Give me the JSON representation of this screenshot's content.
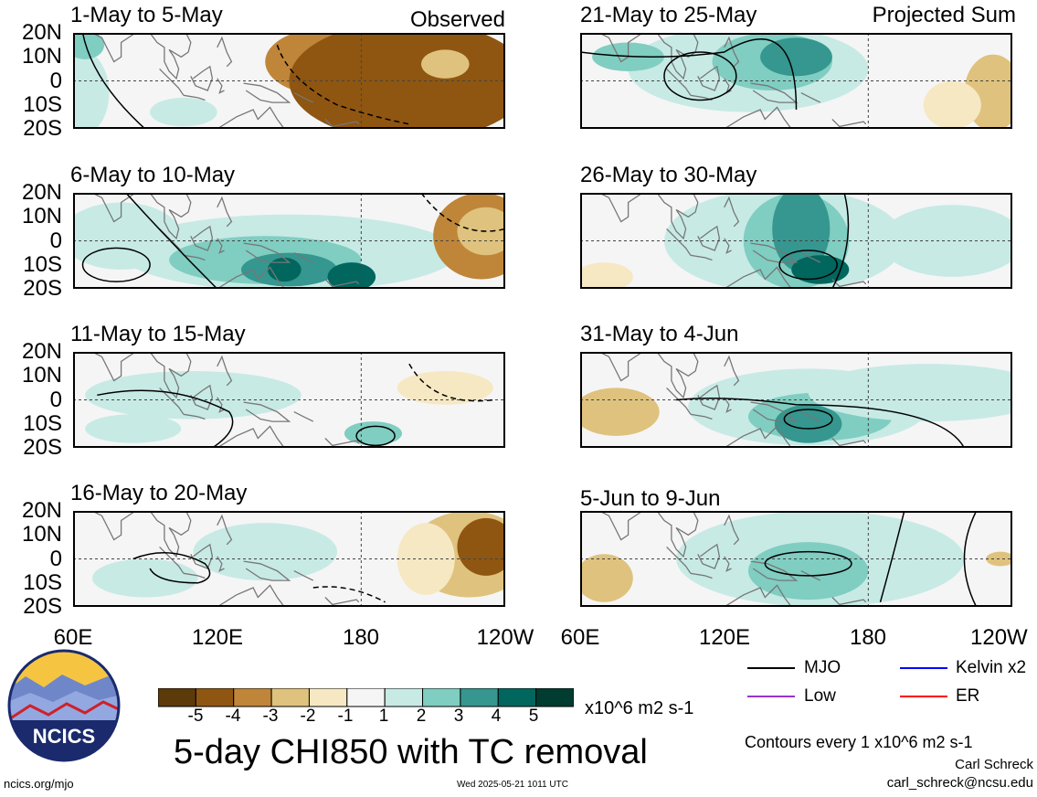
{
  "chart_data": {
    "type": "heatmap",
    "title": "5-day CHI850 with TC removal",
    "variable": "CHI850",
    "units": "x10^6 m2 s-1",
    "columns": [
      {
        "tag": "Observed",
        "panels": [
          "1-May to 5-May",
          "6-May to 10-May",
          "11-May to 15-May",
          "16-May to 20-May"
        ]
      },
      {
        "tag": "Projected Sum",
        "panels": [
          "21-May to 25-May",
          "26-May to 30-May",
          "31-May to 4-Jun",
          "5-Jun to 9-Jun"
        ]
      }
    ],
    "y_ticks": [
      "20N",
      "10N",
      "0",
      "10S",
      "20S"
    ],
    "y_range_deg": [
      -20,
      20
    ],
    "x_ticks": [
      "60E",
      "120E",
      "180",
      "120W"
    ],
    "x_range_deg": [
      60,
      240
    ],
    "colorbar": {
      "labels": [
        "-5",
        "-4",
        "-3",
        "-2",
        "-1",
        "1",
        "2",
        "3",
        "4",
        "5"
      ],
      "colors": [
        "#5c3a0a",
        "#8f5611",
        "#bf8539",
        "#dfc27d",
        "#f6e8c3",
        "#f5f5f5",
        "#c7eae5",
        "#80cdc1",
        "#35978f",
        "#01665e",
        "#003c30"
      ]
    },
    "legend": [
      {
        "label": "MJO",
        "color": "#000000"
      },
      {
        "label": "Kelvin x2",
        "color": "#0000ff"
      },
      {
        "label": "Low",
        "color": "#9933cc"
      },
      {
        "label": "ER",
        "color": "#ff0000"
      }
    ],
    "contour_note": "Contours every 1 x10^6 m2 s-1"
  },
  "footer": {
    "logo_text": "NCICS",
    "site": "ncics.org/mjo",
    "timestamp": "Wed 2025-05-21 1011 UTC",
    "author": "Carl Schreck",
    "email": "carl_schreck@ncsu.edu"
  },
  "panel_blobs": [
    [
      {
        "lon": 165,
        "lat": 8,
        "rx": 25,
        "ry": 14,
        "level": 2
      },
      {
        "lon": 215,
        "lat": 5,
        "rx": 22,
        "ry": 16,
        "level": 2
      },
      {
        "lon": 200,
        "lat": 0,
        "rx": 50,
        "ry": 25,
        "level": 1
      },
      {
        "lon": 215,
        "lat": 7,
        "rx": 10,
        "ry": 6,
        "level": 3
      },
      {
        "lon": 63,
        "lat": -5,
        "rx": 12,
        "ry": 18,
        "level": 6
      },
      {
        "lon": 65,
        "lat": 15,
        "rx": 8,
        "ry": 6,
        "level": 7
      },
      {
        "lon": 106,
        "lat": -13,
        "rx": 14,
        "ry": 6,
        "level": 6
      }
    ],
    [
      {
        "lon": 150,
        "lat": -5,
        "rx": 70,
        "ry": 16,
        "level": 6
      },
      {
        "lon": 140,
        "lat": -8,
        "rx": 40,
        "ry": 10,
        "level": 7
      },
      {
        "lon": 150,
        "lat": -12,
        "rx": 20,
        "ry": 7,
        "level": 8
      },
      {
        "lon": 176,
        "lat": -15,
        "rx": 10,
        "ry": 6,
        "level": 9
      },
      {
        "lon": 148,
        "lat": -12,
        "rx": 7,
        "ry": 5,
        "level": 9
      },
      {
        "lon": 230,
        "lat": 2,
        "rx": 20,
        "ry": 18,
        "level": 2
      },
      {
        "lon": 232,
        "lat": 4,
        "rx": 12,
        "ry": 10,
        "level": 3
      },
      {
        "lon": 80,
        "lat": 2,
        "rx": 25,
        "ry": 14,
        "level": 6
      }
    ],
    [
      {
        "lon": 110,
        "lat": 2,
        "rx": 45,
        "ry": 10,
        "level": 6
      },
      {
        "lon": 85,
        "lat": -12,
        "rx": 20,
        "ry": 6,
        "level": 6
      },
      {
        "lon": 185,
        "lat": -14,
        "rx": 12,
        "ry": 5,
        "level": 7
      },
      {
        "lon": 215,
        "lat": 5,
        "rx": 20,
        "ry": 7,
        "level": 4
      }
    ],
    [
      {
        "lon": 225,
        "lat": 2,
        "rx": 25,
        "ry": 18,
        "level": 3
      },
      {
        "lon": 232,
        "lat": 5,
        "rx": 12,
        "ry": 12,
        "level": 1
      },
      {
        "lon": 207,
        "lat": 0,
        "rx": 12,
        "ry": 15,
        "level": 4
      },
      {
        "lon": 140,
        "lat": 3,
        "rx": 30,
        "ry": 12,
        "level": 6
      },
      {
        "lon": 90,
        "lat": -8,
        "rx": 22,
        "ry": 8,
        "level": 6
      }
    ],
    [
      {
        "lon": 130,
        "lat": 5,
        "rx": 50,
        "ry": 18,
        "level": 6
      },
      {
        "lon": 140,
        "lat": 8,
        "rx": 25,
        "ry": 12,
        "level": 7
      },
      {
        "lon": 150,
        "lat": 10,
        "rx": 15,
        "ry": 8,
        "level": 8
      },
      {
        "lon": 80,
        "lat": 10,
        "rx": 15,
        "ry": 6,
        "level": 7
      },
      {
        "lon": 232,
        "lat": -5,
        "rx": 12,
        "ry": 16,
        "level": 3
      },
      {
        "lon": 215,
        "lat": -10,
        "rx": 12,
        "ry": 10,
        "level": 4
      }
    ],
    [
      {
        "lon": 145,
        "lat": 0,
        "rx": 50,
        "ry": 22,
        "level": 6
      },
      {
        "lon": 150,
        "lat": 0,
        "rx": 22,
        "ry": 20,
        "level": 7
      },
      {
        "lon": 152,
        "lat": 5,
        "rx": 12,
        "ry": 18,
        "level": 8
      },
      {
        "lon": 160,
        "lat": -12,
        "rx": 12,
        "ry": 6,
        "level": 9
      },
      {
        "lon": 215,
        "lat": 0,
        "rx": 30,
        "ry": 15,
        "level": 6
      },
      {
        "lon": 70,
        "lat": -15,
        "rx": 12,
        "ry": 6,
        "level": 4
      }
    ],
    [
      {
        "lon": 155,
        "lat": -3,
        "rx": 50,
        "ry": 16,
        "level": 6
      },
      {
        "lon": 160,
        "lat": -7,
        "rx": 30,
        "ry": 10,
        "level": 7
      },
      {
        "lon": 155,
        "lat": -10,
        "rx": 14,
        "ry": 8,
        "level": 8
      },
      {
        "lon": 75,
        "lat": -5,
        "rx": 18,
        "ry": 10,
        "level": 3
      },
      {
        "lon": 205,
        "lat": 3,
        "rx": 50,
        "ry": 12,
        "level": 6
      }
    ],
    [
      {
        "lon": 160,
        "lat": 0,
        "rx": 60,
        "ry": 20,
        "level": 6
      },
      {
        "lon": 155,
        "lat": -5,
        "rx": 25,
        "ry": 12,
        "level": 7
      },
      {
        "lon": 70,
        "lat": -8,
        "rx": 12,
        "ry": 10,
        "level": 3
      },
      {
        "lon": 235,
        "lat": 0,
        "rx": 6,
        "ry": 3,
        "level": 3
      }
    ]
  ]
}
